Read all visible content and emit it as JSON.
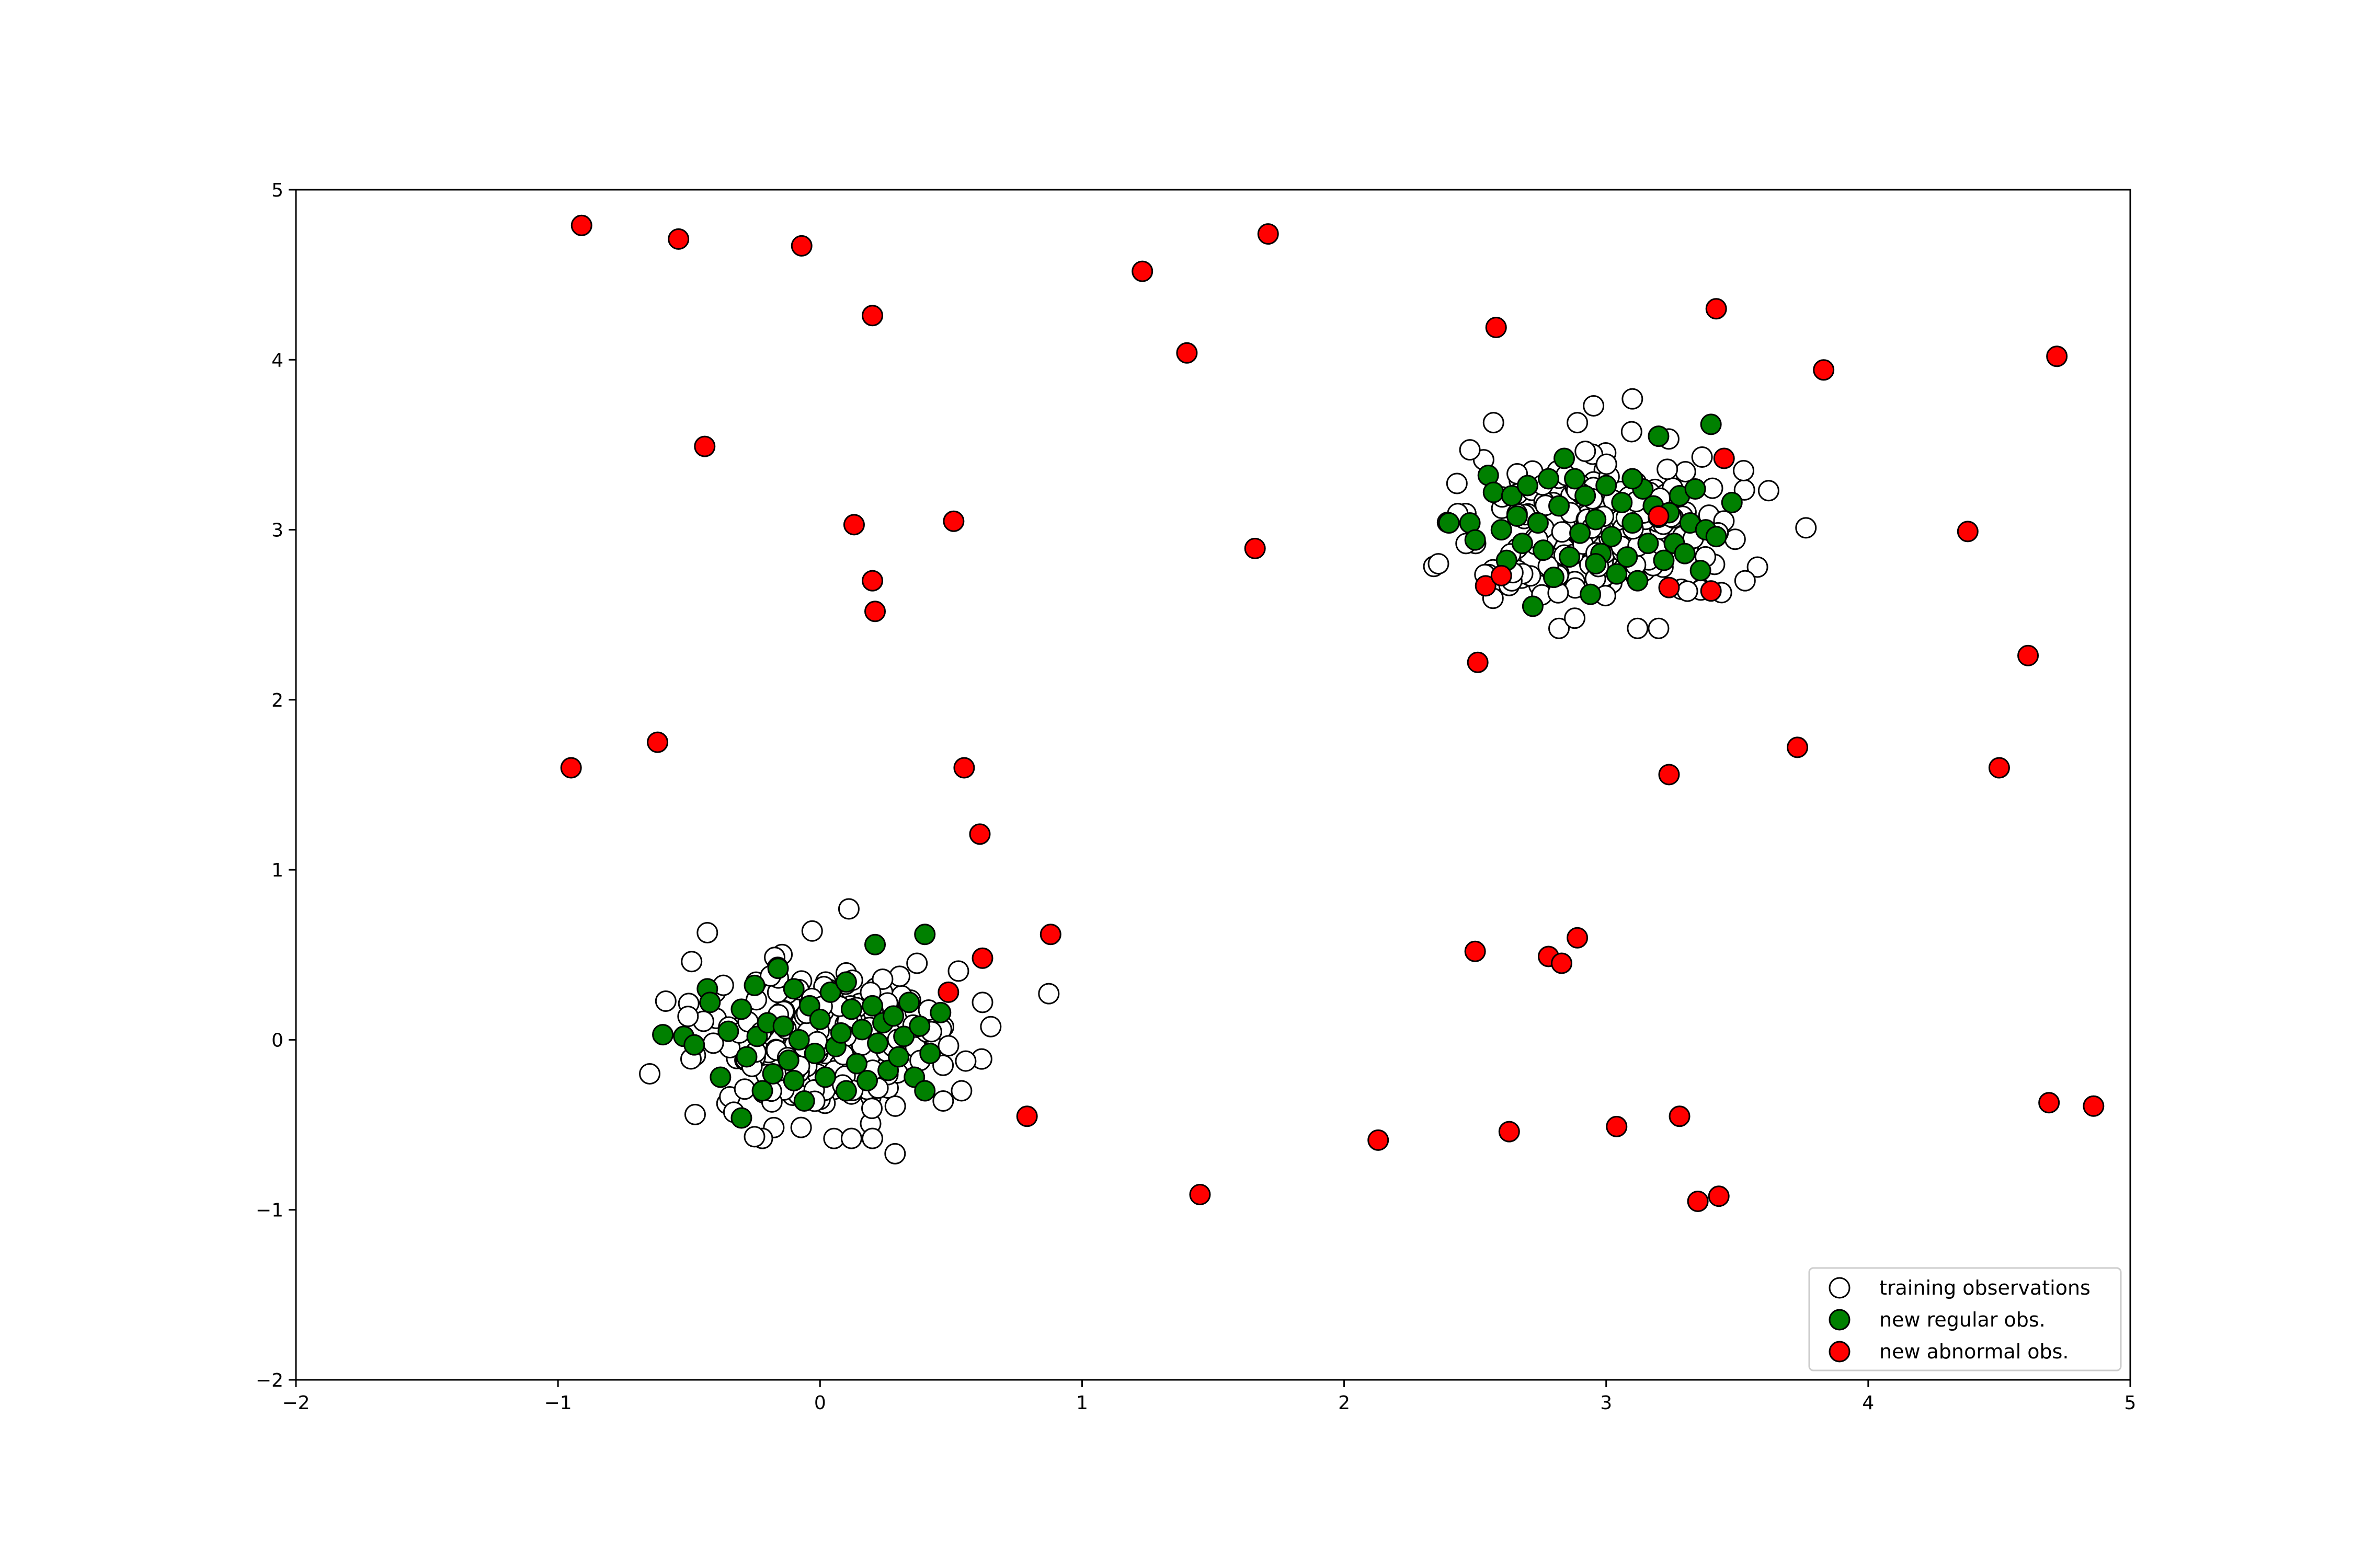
{
  "chart_data": {
    "type": "scatter",
    "title": "",
    "xlabel": "",
    "ylabel": "",
    "xlim": [
      -2,
      5
    ],
    "ylim": [
      -2,
      5
    ],
    "xticks": [
      -2,
      -1,
      0,
      1,
      2,
      3,
      4,
      5
    ],
    "yticks": [
      -2,
      -1,
      0,
      1,
      2,
      3,
      4,
      5
    ],
    "grid": false,
    "legend_position": "bottom-right",
    "series": [
      {
        "name": "training observations",
        "color": "#ffffff",
        "edgecolor": "#000000",
        "clusters": [
          {
            "center": [
              0.0,
              0.0
            ],
            "spread": 0.25,
            "count": 200
          },
          {
            "center": [
              3.0,
              3.0
            ],
            "spread": 0.25,
            "count": 200
          }
        ],
        "points": [
          [
            -0.65,
            -0.2
          ],
          [
            -0.43,
            0.63
          ],
          [
            -0.49,
            0.46
          ],
          [
            -0.03,
            0.64
          ],
          [
            0.11,
            0.77
          ],
          [
            0.37,
            0.45
          ],
          [
            0.62,
            0.22
          ],
          [
            0.54,
            -0.3
          ],
          [
            0.12,
            -0.58
          ],
          [
            0.2,
            -0.58
          ],
          [
            -0.22,
            -0.58
          ],
          [
            -0.25,
            -0.57
          ],
          [
            0.47,
            -0.36
          ],
          [
            2.36,
            2.8
          ],
          [
            2.48,
            3.47
          ],
          [
            2.57,
            3.63
          ],
          [
            2.89,
            3.63
          ],
          [
            3.1,
            3.77
          ],
          [
            3.62,
            3.23
          ],
          [
            3.53,
            2.7
          ],
          [
            3.44,
            2.63
          ],
          [
            2.82,
            2.42
          ],
          [
            3.2,
            2.42
          ],
          [
            3.12,
            2.42
          ],
          [
            2.88,
            2.48
          ]
        ]
      },
      {
        "name": "new regular obs.",
        "color": "#008000",
        "edgecolor": "#000000",
        "points": [
          [
            -0.6,
            0.03
          ],
          [
            -0.52,
            0.02
          ],
          [
            -0.48,
            -0.03
          ],
          [
            -0.43,
            0.3
          ],
          [
            -0.42,
            0.22
          ],
          [
            -0.35,
            0.05
          ],
          [
            -0.3,
            -0.46
          ],
          [
            -0.3,
            0.18
          ],
          [
            -0.28,
            -0.1
          ],
          [
            -0.25,
            0.32
          ],
          [
            -0.24,
            0.02
          ],
          [
            -0.22,
            -0.3
          ],
          [
            -0.2,
            0.1
          ],
          [
            -0.18,
            -0.2
          ],
          [
            -0.16,
            0.42
          ],
          [
            -0.14,
            0.08
          ],
          [
            -0.12,
            -0.12
          ],
          [
            -0.1,
            0.3
          ],
          [
            -0.08,
            0.0
          ],
          [
            -0.06,
            -0.36
          ],
          [
            -0.04,
            0.2
          ],
          [
            -0.02,
            -0.08
          ],
          [
            0.0,
            0.12
          ],
          [
            0.02,
            -0.22
          ],
          [
            0.04,
            0.28
          ],
          [
            0.06,
            -0.04
          ],
          [
            0.08,
            0.04
          ],
          [
            0.1,
            -0.3
          ],
          [
            0.12,
            0.18
          ],
          [
            0.14,
            -0.14
          ],
          [
            0.16,
            0.06
          ],
          [
            0.18,
            -0.24
          ],
          [
            0.2,
            0.2
          ],
          [
            0.21,
            0.56
          ],
          [
            0.22,
            -0.02
          ],
          [
            0.24,
            0.1
          ],
          [
            0.26,
            -0.18
          ],
          [
            0.28,
            0.14
          ],
          [
            0.3,
            -0.1
          ],
          [
            0.32,
            0.02
          ],
          [
            0.34,
            0.22
          ],
          [
            0.36,
            -0.22
          ],
          [
            0.38,
            0.08
          ],
          [
            0.4,
            -0.3
          ],
          [
            0.4,
            0.62
          ],
          [
            0.42,
            -0.08
          ],
          [
            0.46,
            0.16
          ],
          [
            -0.38,
            -0.22
          ],
          [
            0.1,
            0.34
          ],
          [
            -0.1,
            -0.24
          ],
          [
            2.4,
            3.04
          ],
          [
            2.48,
            3.04
          ],
          [
            2.5,
            2.94
          ],
          [
            2.55,
            3.32
          ],
          [
            2.57,
            3.22
          ],
          [
            2.6,
            3.0
          ],
          [
            2.62,
            2.82
          ],
          [
            2.64,
            3.2
          ],
          [
            2.66,
            3.08
          ],
          [
            2.68,
            2.92
          ],
          [
            2.7,
            3.26
          ],
          [
            2.72,
            2.55
          ],
          [
            2.74,
            3.04
          ],
          [
            2.76,
            2.88
          ],
          [
            2.78,
            3.3
          ],
          [
            2.8,
            2.72
          ],
          [
            2.82,
            3.14
          ],
          [
            2.84,
            3.42
          ],
          [
            2.86,
            2.84
          ],
          [
            2.88,
            3.3
          ],
          [
            2.9,
            2.98
          ],
          [
            2.92,
            3.2
          ],
          [
            2.94,
            2.62
          ],
          [
            2.96,
            3.06
          ],
          [
            2.98,
            2.86
          ],
          [
            3.0,
            3.26
          ],
          [
            3.02,
            2.96
          ],
          [
            3.04,
            2.74
          ],
          [
            3.06,
            3.16
          ],
          [
            3.08,
            2.84
          ],
          [
            3.1,
            3.04
          ],
          [
            3.12,
            2.7
          ],
          [
            3.14,
            3.24
          ],
          [
            3.16,
            2.92
          ],
          [
            3.18,
            3.14
          ],
          [
            3.2,
            3.55
          ],
          [
            3.22,
            2.82
          ],
          [
            3.24,
            3.1
          ],
          [
            3.26,
            2.92
          ],
          [
            3.28,
            3.2
          ],
          [
            3.3,
            2.86
          ],
          [
            3.32,
            3.04
          ],
          [
            3.34,
            3.24
          ],
          [
            3.36,
            2.76
          ],
          [
            3.38,
            3.0
          ],
          [
            3.4,
            3.62
          ],
          [
            3.42,
            2.96
          ],
          [
            3.48,
            3.16
          ],
          [
            2.96,
            2.8
          ],
          [
            3.1,
            3.3
          ]
        ]
      },
      {
        "name": "new abnormal obs.",
        "color": "#ff0000",
        "edgecolor": "#000000",
        "points": [
          [
            -0.91,
            4.79
          ],
          [
            -0.54,
            4.71
          ],
          [
            -0.07,
            4.67
          ],
          [
            0.2,
            4.26
          ],
          [
            1.23,
            4.52
          ],
          [
            1.71,
            4.74
          ],
          [
            1.4,
            4.04
          ],
          [
            -0.44,
            3.49
          ],
          [
            0.13,
            3.03
          ],
          [
            0.51,
            3.05
          ],
          [
            0.2,
            2.7
          ],
          [
            0.21,
            2.52
          ],
          [
            1.66,
            2.89
          ],
          [
            -0.95,
            1.6
          ],
          [
            -0.62,
            1.75
          ],
          [
            0.55,
            1.6
          ],
          [
            0.61,
            1.21
          ],
          [
            0.88,
            0.62
          ],
          [
            0.62,
            0.48
          ],
          [
            0.49,
            0.28
          ],
          [
            0.79,
            -0.45
          ],
          [
            1.45,
            -0.91
          ],
          [
            2.13,
            -0.59
          ],
          [
            2.5,
            0.52
          ],
          [
            2.78,
            0.49
          ],
          [
            2.83,
            0.45
          ],
          [
            2.89,
            0.6
          ],
          [
            2.63,
            -0.54
          ],
          [
            3.04,
            -0.51
          ],
          [
            3.28,
            -0.45
          ],
          [
            3.35,
            -0.95
          ],
          [
            3.43,
            -0.92
          ],
          [
            2.51,
            2.22
          ],
          [
            2.58,
            4.19
          ],
          [
            3.42,
            4.3
          ],
          [
            3.83,
            3.94
          ],
          [
            4.72,
            4.02
          ],
          [
            4.38,
            2.99
          ],
          [
            4.61,
            2.26
          ],
          [
            3.73,
            1.72
          ],
          [
            4.5,
            1.6
          ],
          [
            3.24,
            1.56
          ],
          [
            3.2,
            3.08
          ],
          [
            3.45,
            3.42
          ],
          [
            2.54,
            2.67
          ],
          [
            2.6,
            2.73
          ],
          [
            3.4,
            2.64
          ],
          [
            3.24,
            2.66
          ],
          [
            4.69,
            -0.37
          ],
          [
            4.86,
            -0.39
          ]
        ]
      }
    ]
  }
}
